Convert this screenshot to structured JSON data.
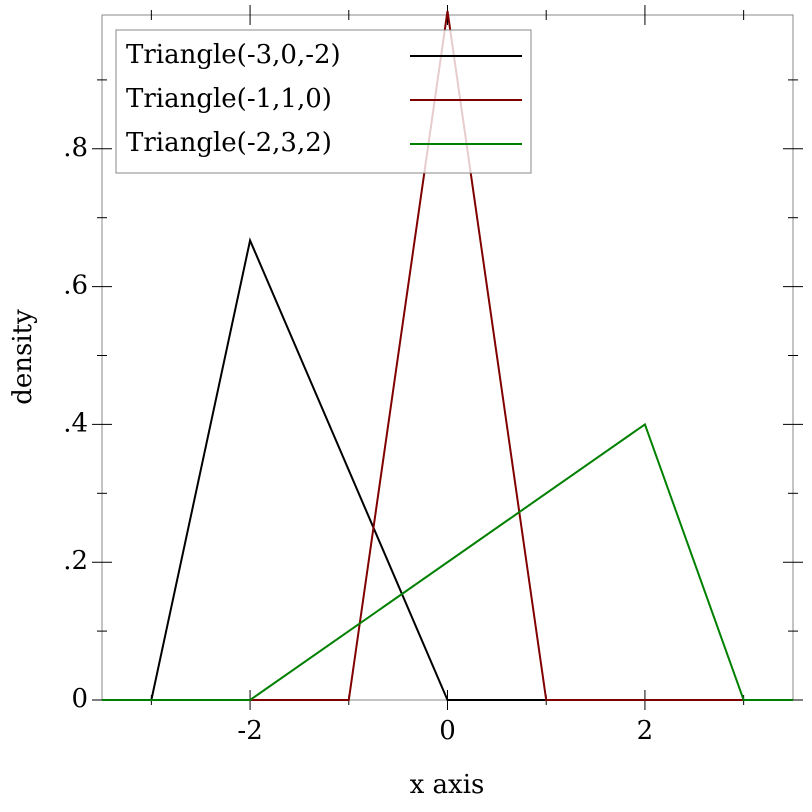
{
  "chart_data": {
    "type": "line",
    "xlabel": "x axis",
    "ylabel": "density",
    "xlim": [
      -3.5,
      3.5
    ],
    "ylim": [
      0,
      1
    ],
    "xticks": [
      -2,
      0,
      2
    ],
    "yticks": [
      0,
      {
        "value": 0.2,
        "label": ".2"
      },
      {
        "value": 0.4,
        "label": ".4"
      },
      {
        "value": 0.6,
        "label": ".6"
      },
      {
        "value": 0.8,
        "label": ".8"
      }
    ],
    "xminor_ticks": [
      -3,
      -1,
      1,
      3
    ],
    "yminor_ticks": [
      0.1,
      0.3,
      0.5,
      0.7,
      0.9
    ],
    "legend": "top-left",
    "series": [
      {
        "name": "Triangle(-3,0,-2)",
        "color": "#000000",
        "x": [
          -3.5,
          -3,
          -2,
          0,
          3.5
        ],
        "values": [
          0,
          0,
          0.667,
          0,
          0
        ]
      },
      {
        "name": "Triangle(-1,1,0)",
        "color": "#800000",
        "x": [
          -3.5,
          -1,
          0,
          1,
          3.5
        ],
        "values": [
          0,
          0,
          1,
          0,
          0
        ]
      },
      {
        "name": "Triangle(-2,3,2)",
        "color": "#008000",
        "x": [
          -3.5,
          -2,
          2,
          3,
          3.5
        ],
        "values": [
          0,
          0,
          0.4,
          0,
          0
        ]
      }
    ]
  }
}
